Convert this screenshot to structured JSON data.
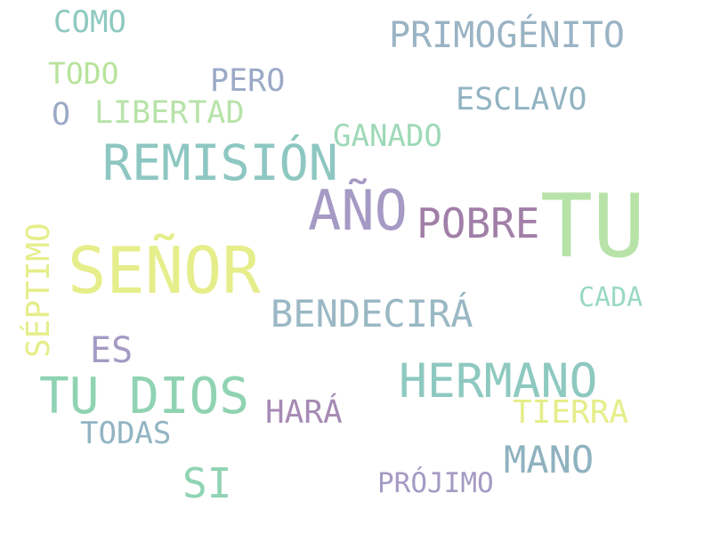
{
  "palette": {
    "background": "#ffffff",
    "teal_blue": "#8fb2bf",
    "slate_blue": "#9aa9c6",
    "lavender": "#a59ac4",
    "mauve": "#a17fa8",
    "mint": "#8fd3b3",
    "sea_green": "#8ec9c0",
    "lime": "#b7e39b",
    "yellow": "#e5ee8a"
  },
  "words": {
    "tu": "TU",
    "senor": "SEÑOR",
    "tu_dios": "TU DIOS",
    "remision": "REMISIÓN",
    "ano": "AÑO",
    "hermano": "HERMANO",
    "primogenito": "PRIMOGÉNITO",
    "bendecira": "BENDECIRÁ",
    "pobre": "POBRE",
    "esclavo": "ESCLAVO",
    "mano": "MANO",
    "libertad": "LIBERTAD",
    "ganado": "GANADO",
    "septimo": "SÉPTIMO",
    "si": "SI",
    "tierra": "TIERRA",
    "como": "COMO",
    "pero": "PERO",
    "todo": "TODO",
    "hara": "HARÁ",
    "todas": "TODAS",
    "es": "ES",
    "projimo": "PRÓJIMO",
    "cada": "CADA",
    "o": "O"
  }
}
